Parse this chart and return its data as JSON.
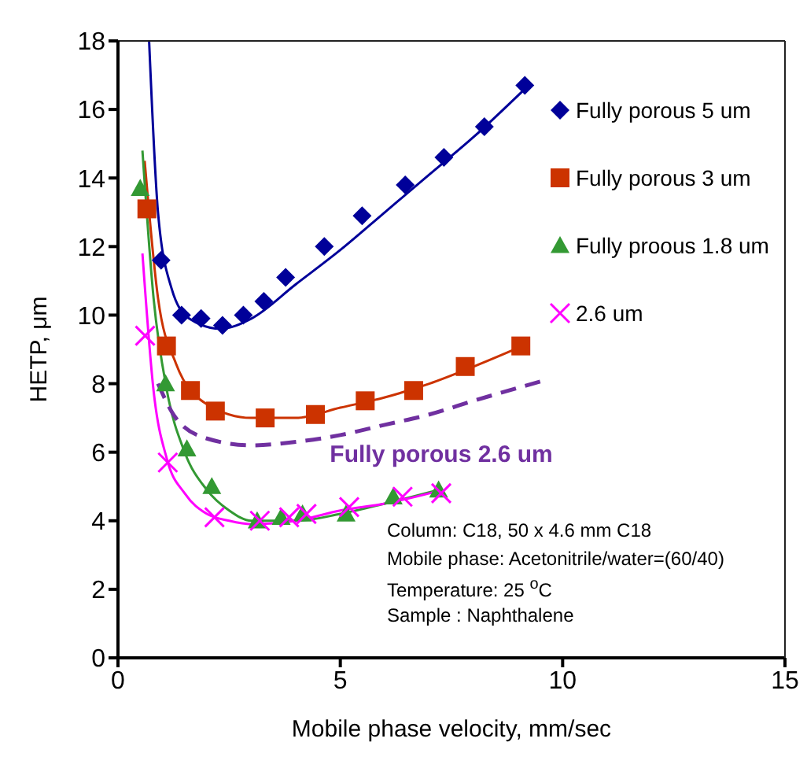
{
  "chart_data": {
    "type": "scatter",
    "xlabel": "Mobile phase velocity, mm/sec",
    "ylabel": "HETP, μm",
    "xlim": [
      0,
      15
    ],
    "xticks": [
      0,
      5,
      10,
      15
    ],
    "ylim": [
      0,
      18
    ],
    "yticks": [
      0,
      2,
      4,
      6,
      8,
      10,
      12,
      14,
      16,
      18
    ],
    "grid": false,
    "legend": "top right",
    "series": [
      {
        "name": "Fully porous 5 um",
        "type": "scatter",
        "marker": "diamond",
        "color": "#000099",
        "x": [
          0.97,
          1.43,
          1.87,
          2.35,
          2.82,
          3.28,
          3.77,
          4.64,
          5.49,
          6.46,
          7.33,
          8.24,
          9.15
        ],
        "values": [
          11.6,
          10.0,
          9.9,
          9.7,
          10.0,
          10.4,
          11.1,
          12.0,
          12.9,
          13.8,
          14.6,
          15.5,
          16.7
        ]
      },
      {
        "name": "Fully porous 3 um",
        "type": "scatter",
        "marker": "square",
        "color": "#cc3300",
        "x": [
          0.65,
          1.09,
          1.63,
          2.19,
          3.31,
          4.44,
          5.56,
          6.65,
          7.81,
          9.06
        ],
        "values": [
          13.1,
          9.1,
          7.8,
          7.2,
          7.0,
          7.1,
          7.5,
          7.8,
          8.5,
          9.1
        ]
      },
      {
        "name": "Fully proous 1.8 um",
        "type": "scatter",
        "marker": "triangle",
        "color": "#339933",
        "x": [
          0.5,
          1.07,
          1.55,
          2.11,
          3.13,
          3.67,
          4.15,
          5.13,
          6.19,
          7.21
        ],
        "values": [
          13.7,
          8.0,
          6.1,
          5.0,
          4.0,
          4.1,
          4.2,
          4.2,
          4.7,
          4.9
        ]
      },
      {
        "name": "2.6 um",
        "type": "scatter",
        "marker": "cross",
        "color": "#ff00ff",
        "x": [
          0.61,
          1.12,
          2.17,
          3.19,
          3.85,
          4.24,
          5.2,
          6.4,
          7.27
        ],
        "values": [
          9.4,
          5.7,
          4.1,
          4.0,
          4.1,
          4.2,
          4.4,
          4.7,
          4.8
        ]
      },
      {
        "type": "line",
        "marker": "none",
        "line_style": "solid",
        "color": "#000099",
        "x": [
          0.7,
          0.9,
          1.2,
          1.6,
          2.3,
          3,
          4,
          5,
          6,
          7,
          8,
          9.15
        ],
        "values": [
          18,
          13,
          10.8,
          9.9,
          9.6,
          9.9,
          10.9,
          11.9,
          13,
          14.1,
          15.2,
          16.6
        ]
      },
      {
        "type": "line",
        "marker": "none",
        "line_style": "solid",
        "color": "#cc3300",
        "x": [
          0.6,
          0.9,
          1.3,
          2,
          3,
          4,
          5,
          6,
          7,
          8,
          9.1
        ],
        "values": [
          14.5,
          10.5,
          8.6,
          7.4,
          7.0,
          7.0,
          7.3,
          7.6,
          8.0,
          8.5,
          9.1
        ]
      },
      {
        "type": "line",
        "marker": "none",
        "line_style": "solid",
        "color": "#339933",
        "x": [
          0.55,
          0.8,
          1.1,
          1.5,
          2,
          2.5,
          3,
          4,
          5,
          6,
          7.2
        ],
        "values": [
          14.8,
          10.5,
          7.8,
          6.0,
          4.9,
          4.3,
          4.0,
          4.0,
          4.2,
          4.5,
          4.9
        ]
      },
      {
        "type": "line",
        "marker": "none",
        "line_style": "solid",
        "color": "#ff00ff",
        "x": [
          0.55,
          0.8,
          1.1,
          1.5,
          2,
          2.5,
          3,
          4,
          5,
          6,
          7.3
        ],
        "values": [
          11.8,
          7.8,
          5.8,
          4.8,
          4.2,
          4.0,
          3.9,
          4.0,
          4.3,
          4.5,
          4.9
        ]
      },
      {
        "name": "Fully porous 2.6 um",
        "type": "line",
        "marker": "none",
        "line_style": "dashed",
        "color": "#7030a0",
        "x": [
          0.9,
          1.3,
          2,
          3,
          4,
          5,
          6,
          7,
          8,
          9.6
        ],
        "values": [
          8.0,
          7.0,
          6.4,
          6.2,
          6.3,
          6.5,
          6.8,
          7.1,
          7.5,
          8.1
        ]
      }
    ],
    "annotations": [
      "Column: C18, 50 x 4.6 mm C18",
      "Mobile phase: Acetonitrile/water=(60/40)",
      "Temperature: 25 $^{o}$C",
      "Sample : Naphthalene"
    ]
  }
}
